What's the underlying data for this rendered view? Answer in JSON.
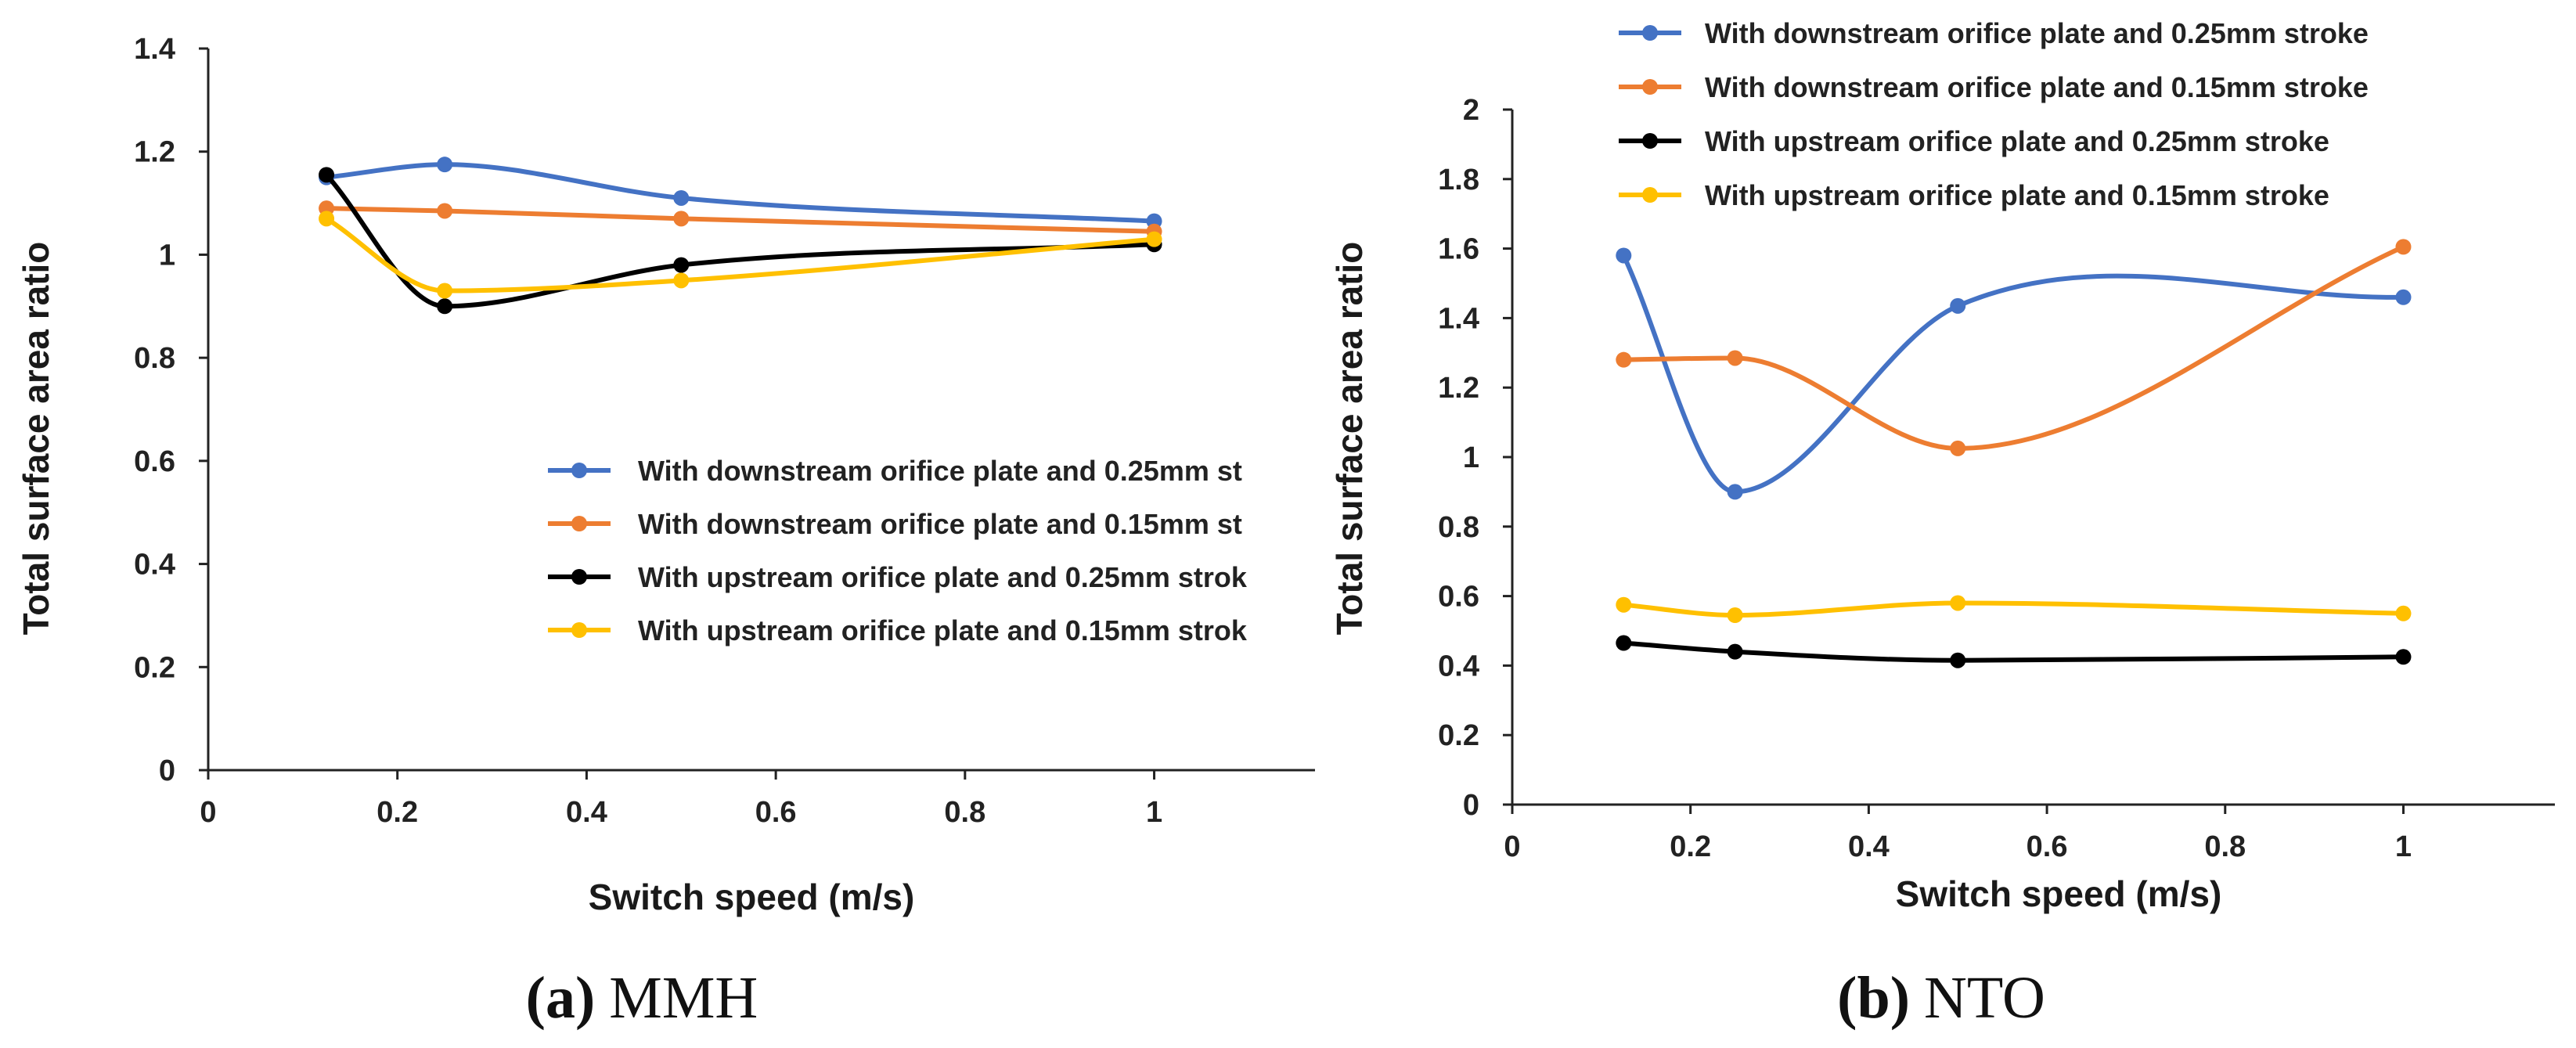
{
  "chart_data": [
    {
      "type": "line",
      "title": "",
      "caption_label": "(a)",
      "caption_text": "MMH",
      "xlabel": "Switch speed (m/s)",
      "ylabel": "Total surface area ratio",
      "xlim": [
        0,
        1.17
      ],
      "ylim": [
        0,
        1.4
      ],
      "xticks": [
        "0",
        "0.2",
        "0.4",
        "0.6",
        "0.8",
        "1"
      ],
      "yticks": [
        "0",
        "0.2",
        "0.4",
        "0.6",
        "0.8",
        "1",
        "1.2",
        "1.4"
      ],
      "legend_position": "center-right",
      "x": [
        0.125,
        0.25,
        0.5,
        1.0
      ],
      "series": [
        {
          "name": "With downstream orifice plate and 0.25mm st",
          "color": "#4472C4",
          "values": [
            1.15,
            1.175,
            1.11,
            1.065
          ]
        },
        {
          "name": "With downstream orifice plate and 0.15mm st",
          "color": "#ED7D31",
          "values": [
            1.09,
            1.085,
            1.07,
            1.045
          ]
        },
        {
          "name": "With upstream orifice plate and 0.25mm strok",
          "color": "#000000",
          "values": [
            1.155,
            0.9,
            0.98,
            1.02
          ]
        },
        {
          "name": "With upstream orifice plate and 0.15mm strok",
          "color": "#FFC000",
          "values": [
            1.07,
            0.93,
            0.95,
            1.03
          ]
        }
      ]
    },
    {
      "type": "line",
      "title": "",
      "caption_label": "(b)",
      "caption_text": "NTO",
      "xlabel": "Switch speed (m/s)",
      "ylabel": "Total surface area ratio",
      "xlim": [
        0,
        1.17
      ],
      "ylim": [
        0,
        2
      ],
      "xticks": [
        "0",
        "0.2",
        "0.4",
        "0.6",
        "0.8",
        "1"
      ],
      "yticks": [
        "0",
        "0.2",
        "0.4",
        "0.6",
        "0.8",
        "1",
        "1.2",
        "1.4",
        "1.6",
        "1.8",
        "2"
      ],
      "legend_position": "top",
      "x": [
        0.125,
        0.25,
        0.5,
        1.0
      ],
      "series": [
        {
          "name": "With downstream orifice plate and 0.25mm stroke",
          "color": "#4472C4",
          "values": [
            1.58,
            0.9,
            1.435,
            1.46
          ]
        },
        {
          "name": "With downstream orifice plate and 0.15mm stroke",
          "color": "#ED7D31",
          "values": [
            1.28,
            1.285,
            1.025,
            1.605
          ]
        },
        {
          "name": "With upstream orifice plate and 0.25mm stroke",
          "color": "#000000",
          "values": [
            0.465,
            0.44,
            0.415,
            0.425
          ]
        },
        {
          "name": "With upstream orifice plate and 0.15mm stroke",
          "color": "#FFC000",
          "values": [
            0.575,
            0.545,
            0.58,
            0.55
          ]
        }
      ]
    }
  ]
}
